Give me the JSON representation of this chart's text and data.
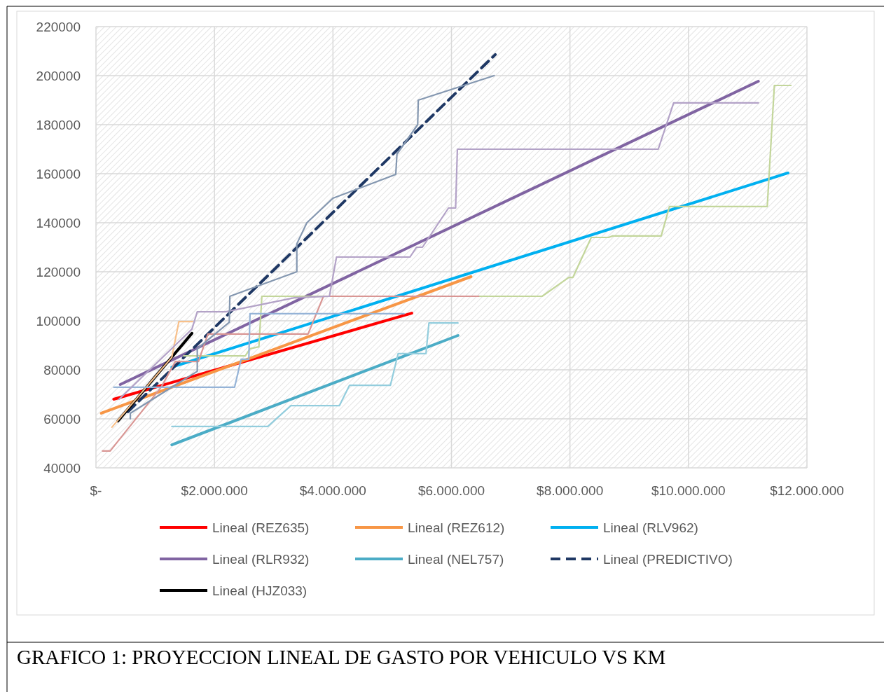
{
  "chart_data": {
    "type": "line",
    "xlim": [
      0,
      12000000
    ],
    "ylim": [
      40000,
      220000
    ],
    "xticks": [
      {
        "value": 0,
        "label": "$-"
      },
      {
        "value": 2000000,
        "label": "$2.000.000"
      },
      {
        "value": 4000000,
        "label": "$4.000.000"
      },
      {
        "value": 6000000,
        "label": "$6.000.000"
      },
      {
        "value": 8000000,
        "label": "$8.000.000"
      },
      {
        "value": 10000000,
        "label": "$10.000.000"
      },
      {
        "value": 12000000,
        "label": "$12.000.000"
      }
    ],
    "yticks": [
      40000,
      60000,
      80000,
      100000,
      120000,
      140000,
      160000,
      180000,
      200000,
      220000
    ],
    "grid": true,
    "legend": "bottom",
    "marker": "none",
    "annotations": [
      "GRAFICO 1: PROYECCION LINEAL DE GASTO POR VEHICULO VS KM"
    ],
    "series": [
      {
        "color": "#c3d69b",
        "x": [
          1480000,
          2520000,
          2600000,
          2750000,
          2800000,
          7530000,
          7980000,
          8050000,
          8360000,
          8650000,
          8720000,
          9540000,
          9680000,
          11330000,
          11450000,
          11730000
        ],
        "values": [
          85700,
          85700,
          88600,
          89400,
          110000,
          110000,
          117700,
          117700,
          134000,
          134000,
          134600,
          134600,
          146600,
          146600,
          196000,
          196000
        ]
      },
      {
        "color": "#d99694",
        "x": [
          110000,
          240000,
          1100000,
          1340000,
          1730000,
          1890000,
          3580000,
          3840000,
          6460000
        ],
        "values": [
          46900,
          46900,
          72900,
          83400,
          83400,
          94600,
          94600,
          110000,
          110000
        ]
      },
      {
        "color": "#f8c08a",
        "x": [
          270000,
          1280000,
          1400000,
          1630000
        ],
        "values": [
          56600,
          85100,
          99700,
          99700
        ]
      },
      {
        "color": "#95b3d7",
        "x": [
          300000,
          2340000,
          2450000,
          2580000,
          2600000,
          5200000
        ],
        "values": [
          72900,
          72900,
          84300,
          84300,
          102900,
          102900
        ]
      },
      {
        "color": "#b3a2c7",
        "x": [
          390000,
          1620000,
          1710000,
          2190000,
          3350000,
          3940000,
          4060000,
          5300000,
          5410000,
          5510000,
          5950000,
          6070000,
          6100000,
          9490000,
          9750000,
          11180000
        ],
        "values": [
          68000,
          96600,
          103700,
          103700,
          109400,
          110000,
          126000,
          126000,
          130000,
          130000,
          146000,
          146000,
          170000,
          170000,
          188900,
          188900
        ]
      },
      {
        "color": "#93cddd",
        "x": [
          1280000,
          2900000,
          3290000,
          4110000,
          4280000,
          4970000,
          5100000,
          5570000,
          5620000,
          6110000
        ],
        "values": [
          56900,
          56900,
          65400,
          65400,
          73700,
          73700,
          86600,
          86600,
          99100,
          99100
        ]
      },
      {
        "color": "#8497b0",
        "x": [
          580000,
          580000,
          1710000,
          1710000,
          2250000,
          2260000,
          3390000,
          3390000,
          3560000,
          4000000,
          5060000,
          5080000,
          5430000,
          5440000,
          6720000
        ],
        "values": [
          60000,
          62300,
          79400,
          88600,
          99400,
          110000,
          120000,
          131400,
          140000,
          150000,
          159700,
          168000,
          180000,
          190000,
          200000
        ]
      },
      {
        "name": "Lineal (REZ635)",
        "color": "#ff0000",
        "x": [
          300000,
          5330000
        ],
        "values": [
          68000,
          103100
        ]
      },
      {
        "name": "Lineal (REZ612)",
        "color": "#f79646",
        "x": [
          90000,
          6330000
        ],
        "values": [
          62300,
          118000
        ]
      },
      {
        "name": "Lineal (RLV962)",
        "color": "#00b0f0",
        "x": [
          1280000,
          11680000
        ],
        "values": [
          81100,
          160300
        ]
      },
      {
        "name": "Lineal (RLR932)",
        "color": "#8064a2",
        "x": [
          410000,
          11180000
        ],
        "values": [
          74000,
          197700
        ]
      },
      {
        "name": "Lineal (NEL757)",
        "color": "#4bacc6",
        "x": [
          1280000,
          6110000
        ],
        "values": [
          49400,
          94000
        ]
      },
      {
        "name": "Lineal (PREDICTIVO)",
        "color": "#1f3864",
        "line_style": "dashed",
        "x": [
          540000,
          6740000
        ],
        "values": [
          62900,
          208600
        ]
      },
      {
        "name": "Lineal (HJZ033)",
        "color": "#000000",
        "x": [
          370000,
          1620000
        ],
        "values": [
          59100,
          94900
        ]
      }
    ]
  }
}
